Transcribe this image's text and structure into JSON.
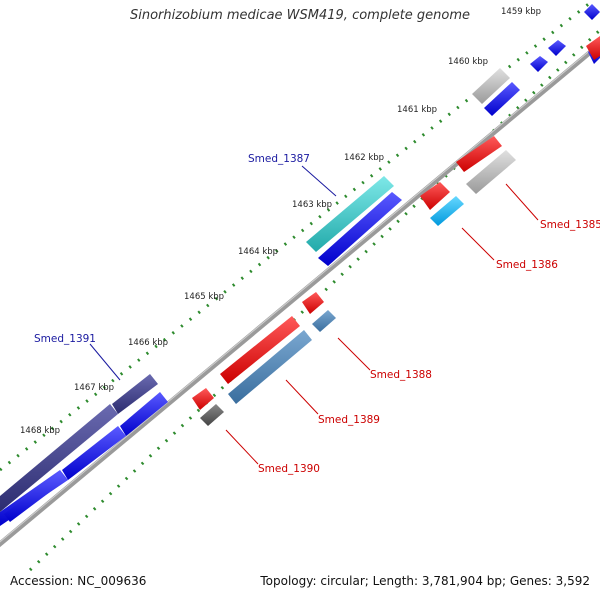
{
  "title": "Sinorhizobium medicae WSM419, complete genome",
  "footer": {
    "accession": "Accession: NC_009636",
    "summary": "Topology: circular; Length: 3,781,904 bp; Genes: 3,592"
  },
  "ticks": [
    "1459 kbp",
    "1460 kbp",
    "1461 kbp",
    "1462 kbp",
    "1463 kbp",
    "1464 kbp",
    "1465 kbp",
    "1466 kbp",
    "1467 kbp",
    "1468 kbp"
  ],
  "gene_labels": {
    "smed_1387": "Smed_1387",
    "smed_1391": "Smed_1391",
    "smed_1385": "Smed_1385",
    "smed_1386": "Smed_1386",
    "smed_1388": "Smed_1388",
    "smed_1389": "Smed_1389",
    "smed_1390": "Smed_1390"
  },
  "colors": {
    "forward_label": "#1a1aa0",
    "reverse_label": "#cc0000",
    "backbone": "#808080",
    "tick_marks": "#2e8b2e",
    "cds_blue": "#0000ee",
    "cds_red": "#ee0000",
    "cds_cyan": "#33cccc",
    "cds_lightblue": "#00bbee",
    "cds_steel": "#4682b4",
    "cds_navy": "#3a3a8a",
    "cds_grey": "#b0b0b0",
    "cds_darkgrey": "#555555"
  }
}
